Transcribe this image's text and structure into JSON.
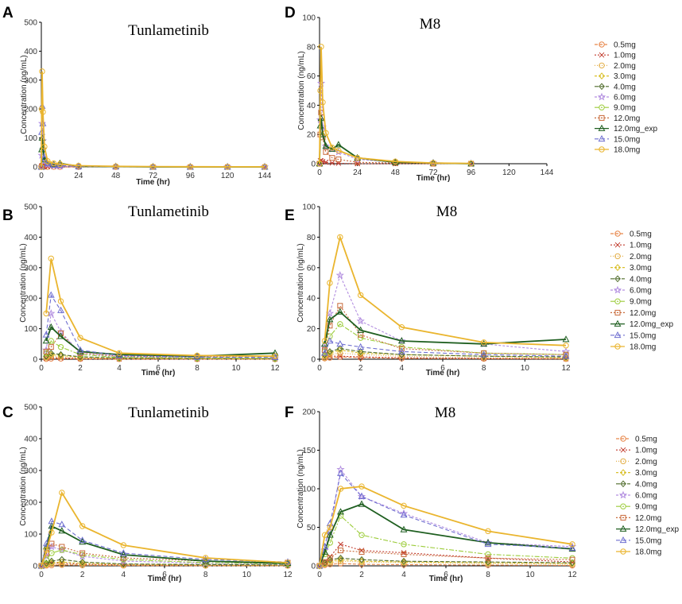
{
  "legend": {
    "entries": [
      {
        "label": "0.5mg",
        "color": "#e8864a",
        "dash": "4,2",
        "marker": "circle"
      },
      {
        "label": "1.0mg",
        "color": "#c0392b",
        "dash": "2,2",
        "marker": "x"
      },
      {
        "label": "2.0mg",
        "color": "#e3b04b",
        "dash": "1,2",
        "marker": "circle"
      },
      {
        "label": "3.0mg",
        "color": "#d9c02a",
        "dash": "3,2",
        "marker": "diamond"
      },
      {
        "label": "4.0mg",
        "color": "#4f6b2a",
        "dash": "5,2",
        "marker": "diamond"
      },
      {
        "label": "6.0mg",
        "color": "#b38fe0",
        "dash": "3,2",
        "marker": "star"
      },
      {
        "label": "9.0mg",
        "color": "#9ccc3a",
        "dash": "6,2,2,2",
        "marker": "circle"
      },
      {
        "label": "12.0mg",
        "color": "#c86a3a",
        "dash": "2,2",
        "marker": "square"
      },
      {
        "label": "12.0mg_exp",
        "color": "#1f5f20",
        "dash": "",
        "marker": "triangle"
      },
      {
        "label": "15.0mg",
        "color": "#6f6fd0",
        "dash": "5,3",
        "marker": "triangle"
      },
      {
        "label": "18.0mg",
        "color": "#eab52e",
        "dash": "",
        "marker": "circle"
      }
    ]
  },
  "chart_data": [
    {
      "panel": "A",
      "type": "line",
      "title": "Tunlametinib",
      "xlabel": "Time (hr)",
      "ylabel": "Concentration (ng/mL)",
      "xlim": [
        0,
        144
      ],
      "ylim": [
        0,
        500
      ],
      "xticks": [
        0,
        24,
        48,
        72,
        96,
        120,
        144
      ],
      "yticks": [
        0,
        100,
        200,
        300,
        400,
        500
      ],
      "x": [
        0,
        0.25,
        0.5,
        1,
        2,
        4,
        8,
        12,
        24,
        48,
        72,
        96,
        120,
        144
      ],
      "series": [
        {
          "name": "0.5mg",
          "values": [
            0,
            1,
            2,
            1,
            0.5,
            0.3,
            0.2,
            0.1,
            0,
            0,
            0,
            0,
            0,
            0
          ]
        },
        {
          "name": "1.0mg",
          "values": [
            0,
            3,
            5,
            3,
            2,
            1,
            0.5,
            0.3,
            0,
            0,
            0,
            0,
            0,
            0
          ]
        },
        {
          "name": "6.0mg",
          "values": [
            0,
            40,
            150,
            90,
            20,
            8,
            4,
            3,
            1,
            0.5,
            0,
            0,
            0,
            0
          ]
        },
        {
          "name": "12.0mg_exp",
          "values": [
            0,
            60,
            100,
            70,
            25,
            12,
            8,
            12,
            2,
            1,
            0,
            0,
            0,
            0
          ]
        },
        {
          "name": "15.0mg",
          "values": [
            0,
            120,
            210,
            150,
            30,
            12,
            6,
            5,
            2,
            1,
            0.5,
            0,
            0,
            0
          ]
        },
        {
          "name": "18.0mg",
          "values": [
            0,
            200,
            330,
            190,
            70,
            20,
            12,
            10,
            4,
            2,
            1,
            0.5,
            0.3,
            0.2
          ]
        }
      ]
    },
    {
      "panel": "D",
      "type": "line",
      "title": "M8",
      "xlabel": "Time (hr)",
      "ylabel": "Concentration (ng/mL)",
      "xlim": [
        0,
        144
      ],
      "ylim": [
        0,
        100
      ],
      "xticks": [
        0,
        24,
        48,
        72,
        96,
        120,
        144
      ],
      "yticks": [
        0,
        20,
        40,
        60,
        80,
        100
      ],
      "x": [
        0,
        0.5,
        1,
        2,
        4,
        8,
        12,
        24,
        48,
        72,
        96
      ],
      "series": [
        {
          "name": "1.0mg",
          "values": [
            0,
            2,
            2,
            1.5,
            1,
            0.5,
            0.3,
            0,
            0,
            0,
            0
          ]
        },
        {
          "name": "6.0mg",
          "values": [
            0,
            30,
            55,
            25,
            12,
            10,
            8,
            3,
            1,
            0.5,
            0
          ]
        },
        {
          "name": "12.0mg",
          "values": [
            0,
            20,
            35,
            18,
            8,
            4,
            3,
            1,
            0.5,
            0,
            0
          ]
        },
        {
          "name": "12.0mg_exp",
          "values": [
            0,
            26,
            31,
            20,
            12,
            10,
            13,
            4,
            1,
            0.5,
            0
          ]
        },
        {
          "name": "18.0mg",
          "values": [
            0,
            50,
            80,
            42,
            21,
            11,
            9,
            4,
            1.5,
            0.5,
            0.2
          ]
        }
      ]
    },
    {
      "panel": "B",
      "type": "line",
      "title": "Tunlametinib",
      "xlabel": "Time (hr)",
      "ylabel": "Concentration (ng/mL)",
      "xlim": [
        0,
        12
      ],
      "ylim": [
        0,
        500
      ],
      "xticks": [
        0,
        2,
        4,
        6,
        8,
        10,
        12
      ],
      "yticks": [
        0,
        100,
        200,
        300,
        400,
        500
      ],
      "x": [
        0.25,
        0.5,
        1,
        2,
        4,
        8,
        12
      ],
      "series": [
        {
          "name": "0.5mg",
          "values": [
            1,
            2,
            2,
            1,
            0.5,
            0.3,
            0.2
          ]
        },
        {
          "name": "1.0mg",
          "values": [
            3,
            5,
            4,
            2,
            1,
            0.5,
            0.3
          ]
        },
        {
          "name": "2.0mg",
          "values": [
            5,
            10,
            8,
            4,
            2,
            1,
            0.5
          ]
        },
        {
          "name": "3.0mg",
          "values": [
            8,
            15,
            12,
            6,
            3,
            2,
            1
          ]
        },
        {
          "name": "4.0mg",
          "values": [
            10,
            20,
            15,
            8,
            4,
            3,
            2
          ]
        },
        {
          "name": "6.0mg",
          "values": [
            30,
            150,
            90,
            20,
            8,
            5,
            4
          ]
        },
        {
          "name": "9.0mg",
          "values": [
            20,
            60,
            40,
            15,
            6,
            4,
            3
          ]
        },
        {
          "name": "12.0mg",
          "values": [
            25,
            40,
            85,
            20,
            10,
            8,
            10
          ]
        },
        {
          "name": "12.0mg_exp",
          "values": [
            60,
            105,
            75,
            25,
            15,
            10,
            20
          ]
        },
        {
          "name": "15.0mg",
          "values": [
            80,
            210,
            160,
            30,
            12,
            7,
            6
          ]
        },
        {
          "name": "18.0mg",
          "values": [
            150,
            330,
            190,
            70,
            20,
            12,
            10
          ]
        }
      ]
    },
    {
      "panel": "E",
      "type": "line",
      "title": "M8",
      "xlabel": "Time (hr)",
      "ylabel": "Concentration (ng/mL)",
      "xlim": [
        0,
        12
      ],
      "ylim": [
        0,
        100
      ],
      "xticks": [
        0,
        2,
        4,
        6,
        8,
        10,
        12
      ],
      "yticks": [
        0,
        20,
        40,
        60,
        80,
        100
      ],
      "x": [
        0.25,
        0.5,
        1,
        2,
        4,
        8,
        12
      ],
      "series": [
        {
          "name": "0.5mg",
          "values": [
            0.5,
            1,
            1.5,
            1,
            0.5,
            0.3,
            0.2
          ]
        },
        {
          "name": "1.0mg",
          "values": [
            1,
            2,
            2,
            1.5,
            1,
            0.5,
            0.3
          ]
        },
        {
          "name": "2.0mg",
          "values": [
            1,
            3,
            4,
            3,
            2,
            1,
            0.5
          ]
        },
        {
          "name": "3.0mg",
          "values": [
            2,
            4,
            6,
            4,
            3,
            2,
            1
          ]
        },
        {
          "name": "4.0mg",
          "values": [
            3,
            5,
            7,
            5,
            3,
            2,
            1.5
          ]
        },
        {
          "name": "6.0mg",
          "values": [
            8,
            30,
            55,
            25,
            12,
            10,
            5
          ]
        },
        {
          "name": "9.0mg",
          "values": [
            5,
            15,
            23,
            14,
            8,
            4,
            3
          ]
        },
        {
          "name": "12.0mg",
          "values": [
            6,
            22,
            35,
            16,
            7,
            4,
            3
          ]
        },
        {
          "name": "12.0mg_exp",
          "values": [
            10,
            26,
            31,
            19,
            12,
            10,
            13
          ]
        },
        {
          "name": "15.0mg",
          "values": [
            4,
            12,
            10,
            8,
            5,
            3,
            2
          ]
        },
        {
          "name": "18.0mg",
          "values": [
            12,
            50,
            80,
            42,
            21,
            11,
            9
          ]
        }
      ]
    },
    {
      "panel": "C",
      "type": "line",
      "title": "Tunlametinib",
      "xlabel": "Time (hr)",
      "ylabel": "Concentration (ng/mL)",
      "xlim": [
        0,
        12
      ],
      "ylim": [
        0,
        500
      ],
      "xticks": [
        0,
        2,
        4,
        6,
        8,
        10,
        12
      ],
      "yticks": [
        0,
        100,
        200,
        300,
        400,
        500
      ],
      "x": [
        0,
        0.25,
        0.5,
        1,
        2,
        4,
        8,
        12
      ],
      "series": [
        {
          "name": "0.5mg",
          "values": [
            0,
            1,
            2,
            3,
            2,
            1,
            0.5,
            0.3
          ]
        },
        {
          "name": "1.0mg",
          "values": [
            0,
            5,
            10,
            8,
            5,
            3,
            2,
            1
          ]
        },
        {
          "name": "2.0mg",
          "values": [
            0,
            3,
            6,
            5,
            3,
            2,
            1,
            0.5
          ]
        },
        {
          "name": "3.0mg",
          "values": [
            0,
            5,
            10,
            12,
            8,
            5,
            3,
            2
          ]
        },
        {
          "name": "4.0mg",
          "values": [
            0,
            8,
            15,
            20,
            12,
            6,
            4,
            3
          ]
        },
        {
          "name": "6.0mg",
          "values": [
            0,
            30,
            60,
            50,
            30,
            15,
            8,
            5
          ]
        },
        {
          "name": "9.0mg",
          "values": [
            0,
            20,
            40,
            50,
            35,
            20,
            10,
            6
          ]
        },
        {
          "name": "12.0mg",
          "values": [
            0,
            40,
            70,
            60,
            40,
            25,
            15,
            10
          ]
        },
        {
          "name": "12.0mg_exp",
          "values": [
            0,
            60,
            125,
            110,
            75,
            35,
            15,
            8
          ]
        },
        {
          "name": "15.0mg",
          "values": [
            0,
            70,
            140,
            130,
            80,
            40,
            20,
            12
          ]
        },
        {
          "name": "18.0mg",
          "values": [
            0,
            50,
            105,
            230,
            125,
            65,
            25,
            10
          ]
        }
      ]
    },
    {
      "panel": "F",
      "type": "line",
      "title": "M8",
      "xlabel": "Time (hr)",
      "ylabel": "Concentration (ng/mL)",
      "xlim": [
        0,
        12
      ],
      "ylim": [
        0,
        200
      ],
      "xticks": [
        0,
        2,
        4,
        6,
        8,
        10,
        12
      ],
      "yticks": [
        0,
        50,
        100,
        150,
        200
      ],
      "x": [
        0,
        0.25,
        0.5,
        1,
        2,
        4,
        8,
        12
      ],
      "series": [
        {
          "name": "0.5mg",
          "values": [
            0,
            1,
            2,
            3,
            2,
            1.5,
            1,
            0.5
          ]
        },
        {
          "name": "1.0mg",
          "values": [
            0,
            5,
            12,
            28,
            20,
            17,
            10,
            5
          ]
        },
        {
          "name": "2.0mg",
          "values": [
            0,
            2,
            4,
            6,
            5,
            4,
            3,
            2
          ]
        },
        {
          "name": "3.0mg",
          "values": [
            0,
            3,
            6,
            8,
            6,
            5,
            4,
            3
          ]
        },
        {
          "name": "4.0mg",
          "values": [
            0,
            4,
            8,
            10,
            8,
            6,
            5,
            4
          ]
        },
        {
          "name": "6.0mg",
          "values": [
            0,
            20,
            45,
            125,
            90,
            68,
            30,
            25
          ]
        },
        {
          "name": "9.0mg",
          "values": [
            0,
            15,
            30,
            65,
            40,
            28,
            15,
            10
          ]
        },
        {
          "name": "12.0mg",
          "values": [
            0,
            5,
            10,
            20,
            18,
            15,
            10,
            8
          ]
        },
        {
          "name": "12.0mg_exp",
          "values": [
            0,
            18,
            40,
            70,
            80,
            47,
            30,
            22
          ]
        },
        {
          "name": "15.0mg",
          "values": [
            0,
            25,
            55,
            120,
            90,
            66,
            28,
            23
          ]
        },
        {
          "name": "18.0mg",
          "values": [
            0,
            40,
            50,
            100,
            103,
            78,
            45,
            28
          ]
        }
      ]
    }
  ]
}
